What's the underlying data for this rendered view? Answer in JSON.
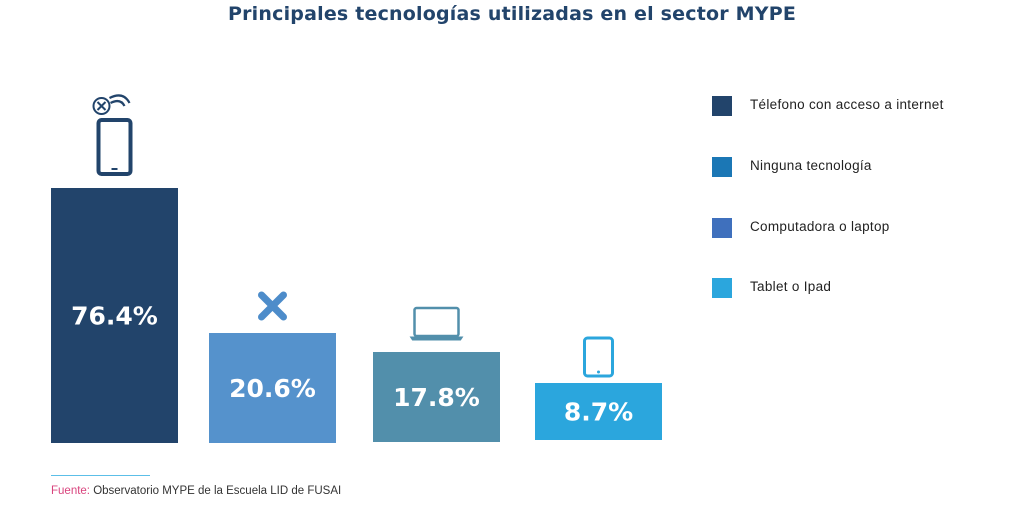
{
  "chart_data": {
    "type": "bar",
    "title": "Principales tecnologías utilizadas en el sector MYPE",
    "categories": [
      "Télefono con acceso a internet",
      "Ninguna tecnología",
      "Computadora o laptop",
      "Tablet o Ipad"
    ],
    "values": [
      76.4,
      20.6,
      17.8,
      8.7
    ],
    "unit": "%",
    "data_labels": [
      "76.4%",
      "20.6%",
      "17.8%",
      "8.7%"
    ],
    "bar_colors": [
      "#22446b",
      "#5592cc",
      "#528fab",
      "#2ba6dd"
    ],
    "bar_icons": [
      "smartphone-no-signal-icon",
      "x-icon",
      "laptop-icon",
      "tablet-icon"
    ],
    "xlabel": "",
    "ylabel": "",
    "ylim": [
      0,
      100
    ],
    "grid": false,
    "legend_position": "right",
    "legend": [
      {
        "label": "Télefono con acceso a internet",
        "color": "#22446b"
      },
      {
        "label": "Ninguna tecnología",
        "color": "#1b77b5"
      },
      {
        "label": "Computadora o laptop",
        "color": "#3f70bd"
      },
      {
        "label": "Tablet o Ipad",
        "color": "#2ba6dd"
      }
    ]
  },
  "footer": {
    "source_label": "Fuente:",
    "source_text": " Observatorio MYPE de la Escuela LID de FUSAI"
  }
}
